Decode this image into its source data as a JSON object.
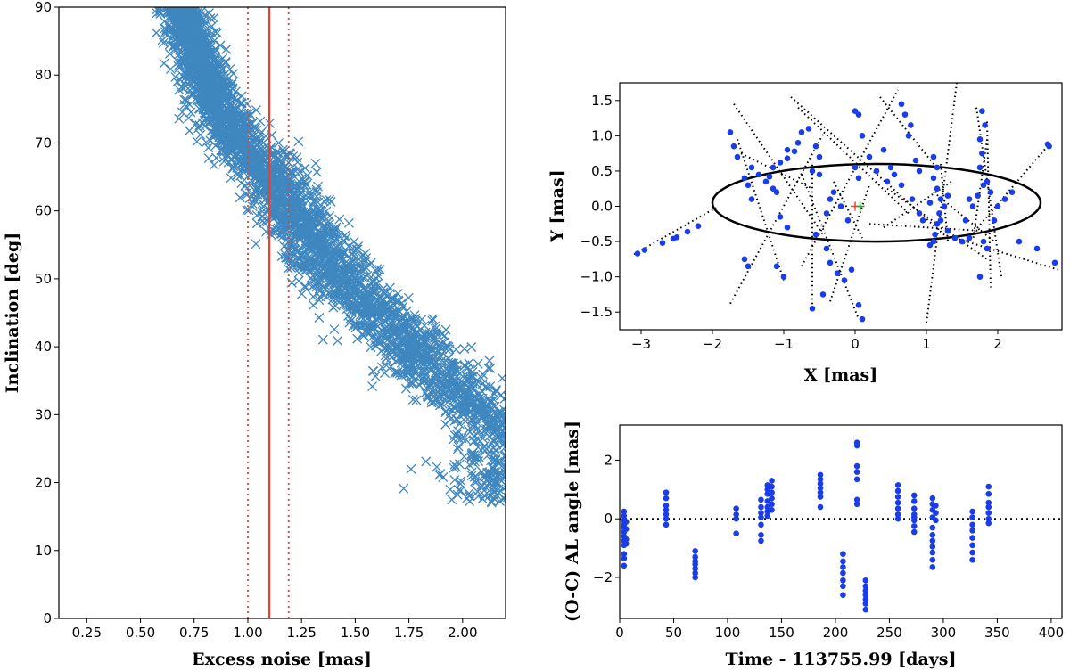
{
  "chart_data": [
    {
      "id": "left",
      "type": "scatter",
      "xlabel": "Excess noise [mas]",
      "ylabel": "Inclination [deg]",
      "xlim": [
        0.12,
        2.2
      ],
      "ylim": [
        0,
        90
      ],
      "xticks": [
        "0.25",
        "0.50",
        "0.75",
        "1.00",
        "1.25",
        "1.50",
        "1.75",
        "2.00"
      ],
      "xtick_values": [
        0.25,
        0.5,
        0.75,
        1.0,
        1.25,
        1.5,
        1.75,
        2.0
      ],
      "yticks": [
        "0",
        "10",
        "20",
        "30",
        "40",
        "50",
        "60",
        "70",
        "80",
        "90"
      ],
      "ytick_values": [
        0,
        10,
        20,
        30,
        40,
        50,
        60,
        70,
        80,
        90
      ],
      "marker": "x",
      "marker_color": "#3f87bf",
      "line_color": "#e8412c",
      "curve": {
        "description": "dense band of samples",
        "x": [
          0.7,
          0.75,
          0.85,
          0.95,
          1.05,
          1.15,
          1.25,
          1.35,
          1.45,
          1.55,
          1.65,
          1.75,
          1.85,
          1.95,
          2.05,
          2.15,
          2.2
        ],
        "y": [
          89,
          84,
          76,
          71,
          67,
          63,
          58,
          53,
          49,
          46,
          43,
          40,
          37,
          34,
          31,
          29,
          28
        ],
        "spread_y": 6.5,
        "n_points": 3600
      },
      "vlines": [
        {
          "x": 1.1,
          "style": "solid",
          "name": "best-fit"
        },
        {
          "x": 1.0,
          "style": "dotted",
          "name": "lower-bound"
        },
        {
          "x": 1.19,
          "style": "dotted",
          "name": "upper-bound"
        }
      ]
    },
    {
      "id": "top-right",
      "type": "scatter",
      "xlabel": "X [mas]",
      "ylabel": "Y [mas]",
      "xlim": [
        -3.3,
        2.9
      ],
      "ylim": [
        -1.75,
        1.75
      ],
      "xticks": [
        "−3",
        "−2",
        "−1",
        "0",
        "1",
        "2"
      ],
      "xtick_values": [
        -3,
        -2,
        -1,
        0,
        1,
        2
      ],
      "yticks": [
        "−1.5",
        "−1.0",
        "−0.5",
        "0.0",
        "0.5",
        "1.0",
        "1.5"
      ],
      "ytick_values": [
        -1.5,
        -1.0,
        -0.5,
        0.0,
        0.5,
        1.0,
        1.5
      ],
      "point_color": "#1a3de8",
      "ellipse": {
        "cx": 0.3,
        "cy": 0.05,
        "rx": 2.3,
        "ry": 0.55
      },
      "origin_markers": [
        {
          "x": 0.0,
          "y": 0.0,
          "color": "#e8412c",
          "name": "red-plus"
        },
        {
          "x": 0.07,
          "y": 0.0,
          "color": "#2ca02c",
          "name": "green-plus"
        }
      ],
      "scan_lines": [
        [
          -3.1,
          -0.68,
          -1.95,
          -0.02
        ],
        [
          -1.7,
          1.45,
          -0.45,
          -0.4
        ],
        [
          -1.75,
          -1.38,
          -0.45,
          1.02
        ],
        [
          -0.6,
          -1.45,
          -0.6,
          0.62
        ],
        [
          -1.6,
          0.75,
          -0.6,
          0.25
        ],
        [
          -1.65,
          0.95,
          -1.0,
          -1.05
        ],
        [
          -0.75,
          -0.85,
          0.6,
          1.65
        ],
        [
          -0.75,
          0.45,
          0.05,
          -1.6
        ],
        [
          -0.9,
          1.55,
          1.3,
          -0.45
        ],
        [
          -0.8,
          1.4,
          0.75,
          -0.1
        ],
        [
          -0.35,
          -1.35,
          0.2,
          0.3
        ],
        [
          1.0,
          -1.65,
          1.45,
          1.95
        ],
        [
          0.35,
          1.55,
          1.1,
          0.6
        ],
        [
          0.4,
          -0.3,
          1.35,
          0.35
        ],
        [
          0.45,
          0.25,
          1.85,
          -0.75
        ],
        [
          1.2,
          0.6,
          1.3,
          -0.5
        ],
        [
          1.55,
          -0.5,
          2.72,
          0.88
        ],
        [
          1.1,
          0.2,
          1.95,
          -0.5
        ],
        [
          1.7,
          1.4,
          2.05,
          -1.0
        ],
        [
          1.85,
          1.2,
          1.9,
          -1.15
        ],
        [
          1.4,
          -0.45,
          2.85,
          -0.9
        ],
        [
          0.2,
          -0.25,
          1.8,
          -0.35
        ],
        [
          -0.3,
          0.35,
          0.1,
          -0.45
        ],
        [
          1.85,
          0.95,
          1.65,
          -0.5
        ]
      ],
      "points": [
        [
          -3.05,
          -0.67
        ],
        [
          -2.95,
          -0.62
        ],
        [
          -2.7,
          -0.52
        ],
        [
          -2.55,
          -0.46
        ],
        [
          -2.5,
          -0.44
        ],
        [
          -2.35,
          -0.36
        ],
        [
          -2.2,
          -0.28
        ],
        [
          -1.75,
          1.05
        ],
        [
          -1.7,
          0.85
        ],
        [
          -1.65,
          0.7
        ],
        [
          -1.55,
          0.4
        ],
        [
          -1.5,
          0.3
        ],
        [
          -1.45,
          0.1
        ],
        [
          -1.45,
          0.55
        ],
        [
          -1.35,
          0.45
        ],
        [
          -1.25,
          0.35
        ],
        [
          -1.15,
          0.25
        ],
        [
          -1.1,
          0.2
        ],
        [
          -1.2,
          0.42
        ],
        [
          -1.15,
          0.55
        ],
        [
          -1.05,
          0.62
        ],
        [
          -0.95,
          0.68
        ],
        [
          -0.85,
          0.78
        ],
        [
          -0.8,
          0.9
        ],
        [
          -0.75,
          1.05
        ],
        [
          -0.95,
          0.8
        ],
        [
          -0.65,
          1.1
        ],
        [
          -1.55,
          -0.75
        ],
        [
          -1.5,
          -0.85
        ],
        [
          -1.05,
          -0.15
        ],
        [
          -0.95,
          -0.3
        ],
        [
          -1.0,
          -1.0
        ],
        [
          -1.1,
          -0.85
        ],
        [
          -0.55,
          -0.4
        ],
        [
          -0.4,
          -0.6
        ],
        [
          -0.35,
          -0.8
        ],
        [
          -0.25,
          -0.95
        ],
        [
          -0.15,
          -1.05
        ],
        [
          -0.05,
          -0.9
        ],
        [
          -0.45,
          -1.25
        ],
        [
          -0.6,
          -1.45
        ],
        [
          -0.5,
          0.45
        ],
        [
          -0.6,
          0.5
        ],
        [
          -0.3,
          0.2
        ],
        [
          -0.2,
          0.0
        ],
        [
          -0.1,
          -0.2
        ],
        [
          -0.35,
          0.1
        ],
        [
          -0.4,
          -0.1
        ],
        [
          0.05,
          1.3
        ],
        [
          0.1,
          1.0
        ],
        [
          0.0,
          1.35
        ],
        [
          0.2,
          0.7
        ],
        [
          0.3,
          0.5
        ],
        [
          0.45,
          0.35
        ],
        [
          0.05,
          0.4
        ],
        [
          0.0,
          0.55
        ],
        [
          0.5,
          0.55
        ],
        [
          0.55,
          0.45
        ],
        [
          0.65,
          0.3
        ],
        [
          0.8,
          0.1
        ],
        [
          0.9,
          -0.1
        ],
        [
          0.95,
          -0.2
        ],
        [
          0.9,
          0.5
        ],
        [
          0.85,
          0.65
        ],
        [
          0.7,
          1.3
        ],
        [
          0.75,
          1.0
        ],
        [
          0.78,
          1.15
        ],
        [
          0.65,
          1.45
        ],
        [
          0.1,
          -1.6
        ],
        [
          0.05,
          -1.4
        ],
        [
          1.1,
          0.7
        ],
        [
          1.15,
          0.55
        ],
        [
          1.1,
          0.4
        ],
        [
          1.15,
          0.25
        ],
        [
          1.2,
          0.1
        ],
        [
          1.18,
          -0.1
        ],
        [
          1.15,
          -0.25
        ],
        [
          1.12,
          -0.4
        ],
        [
          1.1,
          -0.5
        ],
        [
          1.05,
          -0.55
        ],
        [
          1.2,
          -0.2
        ],
        [
          1.25,
          0.0
        ],
        [
          1.3,
          0.15
        ],
        [
          1.05,
          0.05
        ],
        [
          1.4,
          -0.45
        ],
        [
          1.5,
          -0.5
        ],
        [
          1.6,
          -0.45
        ],
        [
          1.3,
          -0.35
        ],
        [
          1.55,
          -0.2
        ],
        [
          1.65,
          0.0
        ],
        [
          1.72,
          0.15
        ],
        [
          1.6,
          0.1
        ],
        [
          1.8,
          0.3
        ],
        [
          1.75,
          0.55
        ],
        [
          1.78,
          0.75
        ],
        [
          1.75,
          0.95
        ],
        [
          1.78,
          1.35
        ],
        [
          1.82,
          1.15
        ],
        [
          1.85,
          0.35
        ],
        [
          1.9,
          0.2
        ],
        [
          1.8,
          -0.5
        ],
        [
          1.75,
          -1.0
        ],
        [
          1.85,
          -0.6
        ],
        [
          2.0,
          0.0
        ],
        [
          2.1,
          0.1
        ],
        [
          2.2,
          0.2
        ],
        [
          1.95,
          -0.2
        ],
        [
          2.7,
          0.88
        ],
        [
          2.72,
          0.85
        ],
        [
          2.3,
          -0.5
        ],
        [
          2.55,
          -0.6
        ],
        [
          2.8,
          -0.8
        ],
        [
          -0.55,
          0.85
        ],
        [
          -0.5,
          0.7
        ],
        [
          0.4,
          0.8
        ]
      ]
    },
    {
      "id": "bottom-right",
      "type": "scatter",
      "xlabel": "Time - 113755.99 [days]",
      "ylabel": "(O-C) AL angle [mas]",
      "xlim": [
        0,
        410
      ],
      "ylim": [
        -3.4,
        3.2
      ],
      "xticks": [
        "0",
        "50",
        "100",
        "150",
        "200",
        "250",
        "300",
        "350",
        "400"
      ],
      "xtick_values": [
        0,
        50,
        100,
        150,
        200,
        250,
        300,
        350,
        400
      ],
      "yticks": [
        "−2",
        "0",
        "2"
      ],
      "ytick_values": [
        -2,
        0,
        2
      ],
      "point_color": "#1a3de8",
      "hline": {
        "y": 0,
        "style": "dotted"
      },
      "groups": [
        {
          "x": 4,
          "y": [
            0.25,
            0.1,
            -0.05,
            -0.2,
            -0.3,
            -0.45,
            -0.6,
            -0.75,
            -0.9,
            -1.2,
            -1.35,
            -1.6
          ]
        },
        {
          "x": 6,
          "y": [
            -0.1,
            -0.35,
            -0.7,
            -0.85
          ]
        },
        {
          "x": 43,
          "y": [
            0.9,
            0.7,
            0.45,
            0.3,
            0.15,
            0.0,
            -0.2
          ]
        },
        {
          "x": 70,
          "y": [
            -1.1,
            -1.3,
            -1.45,
            -1.55,
            -1.7,
            -1.85,
            -2.0
          ]
        },
        {
          "x": 108,
          "y": [
            0.35,
            0.15,
            0.0,
            -0.5
          ]
        },
        {
          "x": 131,
          "y": [
            0.65,
            0.4,
            0.2,
            0.05,
            -0.2,
            -0.55,
            -0.75
          ]
        },
        {
          "x": 137,
          "y": [
            1.15,
            1.0,
            0.85,
            0.6,
            0.4,
            0.25,
            0.1
          ]
        },
        {
          "x": 141,
          "y": [
            1.3,
            1.1,
            0.9,
            0.7,
            0.5,
            0.3
          ]
        },
        {
          "x": 186,
          "y": [
            1.5,
            1.35,
            1.2,
            1.05,
            0.9,
            0.75,
            0.4
          ]
        },
        {
          "x": 207,
          "y": [
            -1.2,
            -1.45,
            -1.65,
            -1.85,
            -2.1,
            -2.3,
            -2.6
          ]
        },
        {
          "x": 220,
          "y": [
            2.6,
            2.5,
            1.8,
            1.6,
            1.35,
            0.65,
            0.5
          ]
        },
        {
          "x": 228,
          "y": [
            -2.1,
            -2.3,
            -2.45,
            -2.6,
            -2.75,
            -2.9,
            -3.1
          ]
        },
        {
          "x": 258,
          "y": [
            1.15,
            0.95,
            0.75,
            0.55,
            0.35,
            0.15,
            0.0
          ]
        },
        {
          "x": 273,
          "y": [
            0.8,
            0.6,
            0.35,
            0.15,
            -0.05,
            -0.25,
            -0.45,
            0.05
          ]
        },
        {
          "x": 290,
          "y": [
            0.7,
            0.5,
            0.3,
            0.05,
            -0.3,
            -0.55,
            -0.75,
            -0.95,
            -1.15,
            -1.4,
            -1.65
          ]
        },
        {
          "x": 293,
          "y": [
            0.45,
            0.2,
            -0.05
          ]
        },
        {
          "x": 327,
          "y": [
            0.25,
            0.05,
            -0.2,
            -0.4,
            -0.65,
            -0.9,
            -1.15,
            -1.4
          ]
        },
        {
          "x": 342,
          "y": [
            1.1,
            0.85,
            0.55,
            0.4,
            0.2,
            0.0,
            -0.15
          ]
        }
      ]
    }
  ]
}
